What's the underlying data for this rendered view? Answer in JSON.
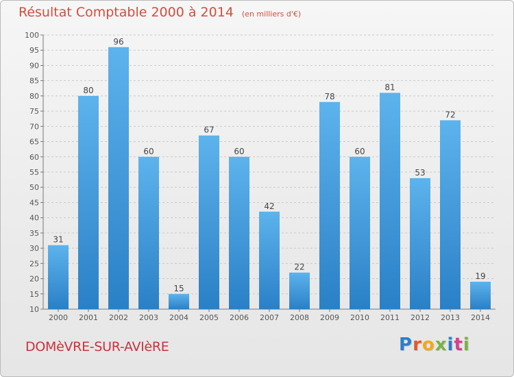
{
  "header": {
    "title": "Résultat Comptable 2000 à 2014",
    "subtitle": "(en milliers d'€)"
  },
  "footer": {
    "place": "DOMèVRE-SUR-AVIèRE",
    "logo": "Proxiti"
  },
  "colors": {
    "title": "#d24d3c",
    "bar_top": "#5db3ec",
    "bar_bottom": "#2a80c6",
    "place": "#c8323c",
    "logo_letters": [
      "#2a7fc9",
      "#e4572e",
      "#f2a81d",
      "#7cb342",
      "#2a7fc9",
      "#d63f8c",
      "#7cb342"
    ]
  },
  "chart_data": {
    "type": "bar",
    "title": "Résultat Comptable 2000 à 2014",
    "subtitle": "(en milliers d'€)",
    "xlabel": "",
    "ylabel": "",
    "categories": [
      "2000",
      "2001",
      "2002",
      "2003",
      "2004",
      "2005",
      "2006",
      "2007",
      "2008",
      "2009",
      "2010",
      "2011",
      "2012",
      "2013",
      "2014"
    ],
    "values": [
      31,
      80,
      96,
      60,
      15,
      67,
      60,
      42,
      22,
      78,
      60,
      81,
      53,
      72,
      19
    ],
    "ylim": [
      10,
      100
    ],
    "yticks": [
      10,
      15,
      20,
      25,
      30,
      35,
      40,
      45,
      50,
      55,
      60,
      65,
      70,
      75,
      80,
      85,
      90,
      95,
      100
    ],
    "grid": "horizontal dashed",
    "legend": "none"
  }
}
